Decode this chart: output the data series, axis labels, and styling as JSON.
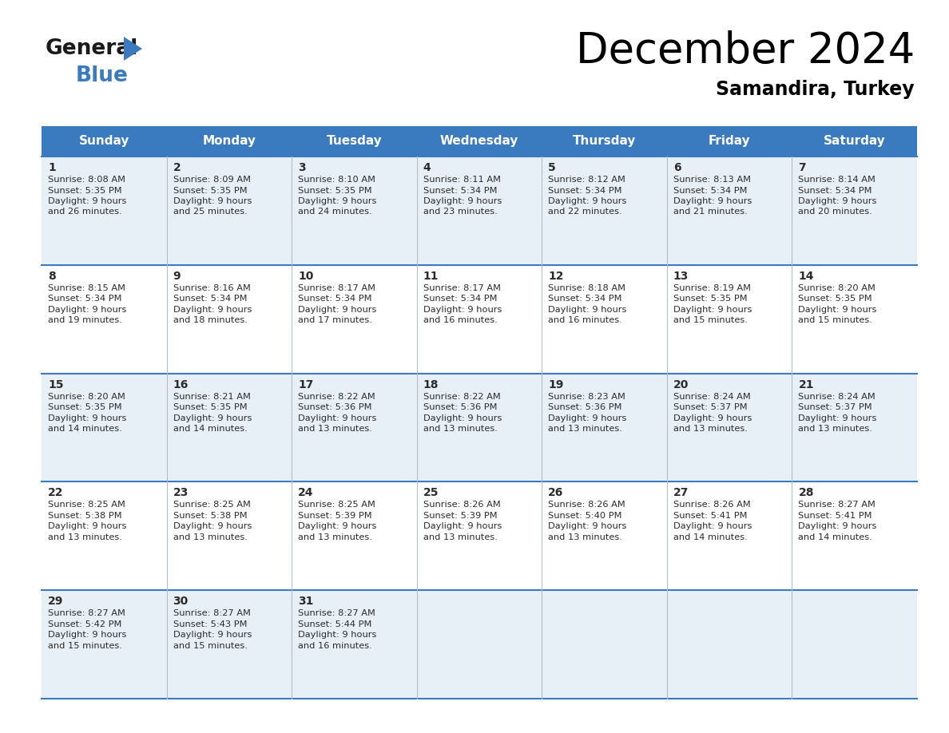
{
  "title": "December 2024",
  "subtitle": "Samandira, Turkey",
  "header_bg": "#3a7abf",
  "header_text_color": "#ffffff",
  "cell_bg_row0": "#e8f0f7",
  "cell_bg_row1": "#ffffff",
  "cell_bg_row2": "#e8f0f7",
  "cell_bg_row3": "#ffffff",
  "cell_bg_row4": "#e8f0f7",
  "day_names": [
    "Sunday",
    "Monday",
    "Tuesday",
    "Wednesday",
    "Thursday",
    "Friday",
    "Saturday"
  ],
  "days": [
    {
      "day": 1,
      "col": 0,
      "row": 0,
      "sunrise": "8:08 AM",
      "sunset": "5:35 PM",
      "daylight_min": "26 minutes."
    },
    {
      "day": 2,
      "col": 1,
      "row": 0,
      "sunrise": "8:09 AM",
      "sunset": "5:35 PM",
      "daylight_min": "25 minutes."
    },
    {
      "day": 3,
      "col": 2,
      "row": 0,
      "sunrise": "8:10 AM",
      "sunset": "5:35 PM",
      "daylight_min": "24 minutes."
    },
    {
      "day": 4,
      "col": 3,
      "row": 0,
      "sunrise": "8:11 AM",
      "sunset": "5:34 PM",
      "daylight_min": "23 minutes."
    },
    {
      "day": 5,
      "col": 4,
      "row": 0,
      "sunrise": "8:12 AM",
      "sunset": "5:34 PM",
      "daylight_min": "22 minutes."
    },
    {
      "day": 6,
      "col": 5,
      "row": 0,
      "sunrise": "8:13 AM",
      "sunset": "5:34 PM",
      "daylight_min": "21 minutes."
    },
    {
      "day": 7,
      "col": 6,
      "row": 0,
      "sunrise": "8:14 AM",
      "sunset": "5:34 PM",
      "daylight_min": "20 minutes."
    },
    {
      "day": 8,
      "col": 0,
      "row": 1,
      "sunrise": "8:15 AM",
      "sunset": "5:34 PM",
      "daylight_min": "19 minutes."
    },
    {
      "day": 9,
      "col": 1,
      "row": 1,
      "sunrise": "8:16 AM",
      "sunset": "5:34 PM",
      "daylight_min": "18 minutes."
    },
    {
      "day": 10,
      "col": 2,
      "row": 1,
      "sunrise": "8:17 AM",
      "sunset": "5:34 PM",
      "daylight_min": "17 minutes."
    },
    {
      "day": 11,
      "col": 3,
      "row": 1,
      "sunrise": "8:17 AM",
      "sunset": "5:34 PM",
      "daylight_min": "16 minutes."
    },
    {
      "day": 12,
      "col": 4,
      "row": 1,
      "sunrise": "8:18 AM",
      "sunset": "5:34 PM",
      "daylight_min": "16 minutes."
    },
    {
      "day": 13,
      "col": 5,
      "row": 1,
      "sunrise": "8:19 AM",
      "sunset": "5:35 PM",
      "daylight_min": "15 minutes."
    },
    {
      "day": 14,
      "col": 6,
      "row": 1,
      "sunrise": "8:20 AM",
      "sunset": "5:35 PM",
      "daylight_min": "15 minutes."
    },
    {
      "day": 15,
      "col": 0,
      "row": 2,
      "sunrise": "8:20 AM",
      "sunset": "5:35 PM",
      "daylight_min": "14 minutes."
    },
    {
      "day": 16,
      "col": 1,
      "row": 2,
      "sunrise": "8:21 AM",
      "sunset": "5:35 PM",
      "daylight_min": "14 minutes."
    },
    {
      "day": 17,
      "col": 2,
      "row": 2,
      "sunrise": "8:22 AM",
      "sunset": "5:36 PM",
      "daylight_min": "13 minutes."
    },
    {
      "day": 18,
      "col": 3,
      "row": 2,
      "sunrise": "8:22 AM",
      "sunset": "5:36 PM",
      "daylight_min": "13 minutes."
    },
    {
      "day": 19,
      "col": 4,
      "row": 2,
      "sunrise": "8:23 AM",
      "sunset": "5:36 PM",
      "daylight_min": "13 minutes."
    },
    {
      "day": 20,
      "col": 5,
      "row": 2,
      "sunrise": "8:24 AM",
      "sunset": "5:37 PM",
      "daylight_min": "13 minutes."
    },
    {
      "day": 21,
      "col": 6,
      "row": 2,
      "sunrise": "8:24 AM",
      "sunset": "5:37 PM",
      "daylight_min": "13 minutes."
    },
    {
      "day": 22,
      "col": 0,
      "row": 3,
      "sunrise": "8:25 AM",
      "sunset": "5:38 PM",
      "daylight_min": "13 minutes."
    },
    {
      "day": 23,
      "col": 1,
      "row": 3,
      "sunrise": "8:25 AM",
      "sunset": "5:38 PM",
      "daylight_min": "13 minutes."
    },
    {
      "day": 24,
      "col": 2,
      "row": 3,
      "sunrise": "8:25 AM",
      "sunset": "5:39 PM",
      "daylight_min": "13 minutes."
    },
    {
      "day": 25,
      "col": 3,
      "row": 3,
      "sunrise": "8:26 AM",
      "sunset": "5:39 PM",
      "daylight_min": "13 minutes."
    },
    {
      "day": 26,
      "col": 4,
      "row": 3,
      "sunrise": "8:26 AM",
      "sunset": "5:40 PM",
      "daylight_min": "13 minutes."
    },
    {
      "day": 27,
      "col": 5,
      "row": 3,
      "sunrise": "8:26 AM",
      "sunset": "5:41 PM",
      "daylight_min": "14 minutes."
    },
    {
      "day": 28,
      "col": 6,
      "row": 3,
      "sunrise": "8:27 AM",
      "sunset": "5:41 PM",
      "daylight_min": "14 minutes."
    },
    {
      "day": 29,
      "col": 0,
      "row": 4,
      "sunrise": "8:27 AM",
      "sunset": "5:42 PM",
      "daylight_min": "15 minutes."
    },
    {
      "day": 30,
      "col": 1,
      "row": 4,
      "sunrise": "8:27 AM",
      "sunset": "5:43 PM",
      "daylight_min": "15 minutes."
    },
    {
      "day": 31,
      "col": 2,
      "row": 4,
      "sunrise": "8:27 AM",
      "sunset": "5:44 PM",
      "daylight_min": "16 minutes."
    }
  ]
}
